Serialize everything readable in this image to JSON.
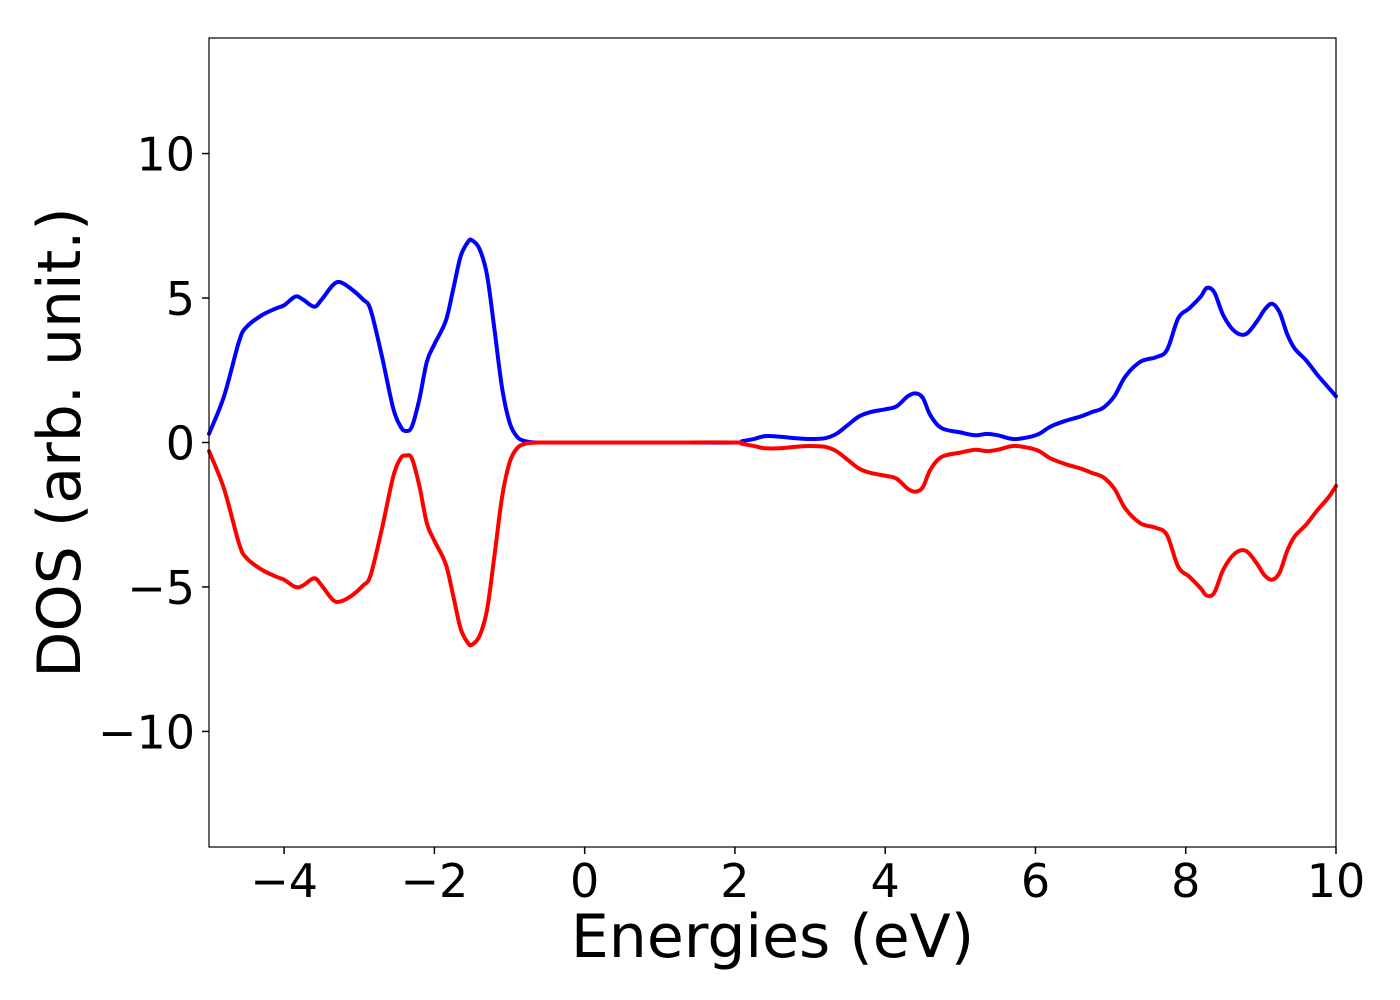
{
  "chart_data": {
    "type": "line",
    "title": "",
    "xlabel": "Energies (eV)",
    "ylabel": "DOS (arb. unit.)",
    "xlim": [
      -5,
      10
    ],
    "ylim": [
      -14,
      14
    ],
    "xticks": [
      -4,
      -2,
      0,
      2,
      4,
      6,
      8,
      10
    ],
    "yticks": [
      -10,
      -5,
      0,
      5,
      10
    ],
    "xtick_labels": [
      "−4",
      "−2",
      "0",
      "2",
      "4",
      "6",
      "8",
      "10"
    ],
    "ytick_labels": [
      "−10",
      "−5",
      "0",
      "5",
      "10"
    ],
    "grid": false,
    "legend": false,
    "series": [
      {
        "color": "#0000ff",
        "x": [
          -5.0,
          -4.8,
          -4.6,
          -4.5,
          -4.3,
          -4.1,
          -4.0,
          -3.85,
          -3.75,
          -3.6,
          -3.5,
          -3.35,
          -3.25,
          -3.1,
          -2.95,
          -2.85,
          -2.7,
          -2.55,
          -2.45,
          -2.38,
          -2.3,
          -2.2,
          -2.1,
          -2.0,
          -1.85,
          -1.75,
          -1.65,
          -1.55,
          -1.5,
          -1.4,
          -1.3,
          -1.2,
          -1.1,
          -1.0,
          -0.9,
          -0.8,
          -0.7,
          -0.6,
          -0.4,
          0.0,
          1.0,
          2.0,
          2.1,
          2.25,
          2.4,
          2.6,
          2.8,
          3.0,
          3.2,
          3.35,
          3.5,
          3.65,
          3.8,
          4.0,
          4.15,
          4.3,
          4.4,
          4.5,
          4.6,
          4.75,
          5.0,
          5.2,
          5.35,
          5.5,
          5.7,
          5.9,
          6.05,
          6.2,
          6.4,
          6.6,
          6.75,
          6.9,
          7.05,
          7.2,
          7.4,
          7.6,
          7.75,
          7.9,
          8.05,
          8.2,
          8.28,
          8.38,
          8.5,
          8.65,
          8.8,
          8.95,
          9.05,
          9.15,
          9.25,
          9.35,
          9.45,
          9.6,
          9.75,
          9.9,
          10.0
        ],
        "y": [
          0.3,
          1.6,
          3.5,
          4.0,
          4.4,
          4.65,
          4.75,
          5.05,
          4.95,
          4.7,
          4.95,
          5.45,
          5.55,
          5.3,
          4.95,
          4.6,
          3.0,
          1.2,
          0.55,
          0.4,
          0.55,
          1.5,
          2.8,
          3.4,
          4.2,
          5.3,
          6.45,
          6.95,
          7.0,
          6.7,
          5.8,
          3.9,
          1.9,
          0.7,
          0.2,
          0.05,
          0.01,
          0.0,
          0.0,
          0.0,
          0.0,
          0.0,
          0.05,
          0.12,
          0.22,
          0.2,
          0.15,
          0.12,
          0.15,
          0.3,
          0.6,
          0.9,
          1.05,
          1.15,
          1.25,
          1.6,
          1.7,
          1.55,
          0.95,
          0.5,
          0.35,
          0.25,
          0.3,
          0.25,
          0.12,
          0.18,
          0.3,
          0.55,
          0.75,
          0.9,
          1.05,
          1.2,
          1.6,
          2.3,
          2.8,
          2.95,
          3.2,
          4.3,
          4.65,
          5.05,
          5.35,
          5.2,
          4.4,
          3.85,
          3.75,
          4.2,
          4.6,
          4.8,
          4.5,
          3.75,
          3.25,
          2.85,
          2.35,
          1.9,
          1.6
        ]
      },
      {
        "color": "#ff0000",
        "x": [
          -5.0,
          -4.8,
          -4.6,
          -4.5,
          -4.3,
          -4.1,
          -4.0,
          -3.85,
          -3.75,
          -3.6,
          -3.5,
          -3.35,
          -3.25,
          -3.1,
          -2.95,
          -2.85,
          -2.7,
          -2.55,
          -2.45,
          -2.38,
          -2.3,
          -2.2,
          -2.1,
          -2.0,
          -1.85,
          -1.75,
          -1.65,
          -1.55,
          -1.5,
          -1.4,
          -1.3,
          -1.2,
          -1.1,
          -1.0,
          -0.9,
          -0.8,
          -0.7,
          -0.6,
          -0.4,
          0.0,
          1.0,
          2.0,
          2.1,
          2.25,
          2.4,
          2.6,
          2.8,
          3.0,
          3.2,
          3.35,
          3.5,
          3.65,
          3.8,
          4.0,
          4.15,
          4.3,
          4.4,
          4.5,
          4.6,
          4.75,
          5.0,
          5.2,
          5.35,
          5.5,
          5.7,
          5.9,
          6.05,
          6.2,
          6.4,
          6.6,
          6.75,
          6.9,
          7.05,
          7.2,
          7.4,
          7.6,
          7.75,
          7.9,
          8.05,
          8.2,
          8.28,
          8.38,
          8.5,
          8.65,
          8.8,
          8.95,
          9.05,
          9.15,
          9.25,
          9.35,
          9.45,
          9.6,
          9.75,
          9.9,
          10.0
        ],
        "y": [
          -0.3,
          -1.6,
          -3.5,
          -4.0,
          -4.4,
          -4.65,
          -4.75,
          -5.0,
          -4.95,
          -4.7,
          -4.95,
          -5.45,
          -5.5,
          -5.3,
          -4.95,
          -4.6,
          -3.0,
          -1.2,
          -0.55,
          -0.45,
          -0.55,
          -1.5,
          -2.8,
          -3.4,
          -4.2,
          -5.3,
          -6.45,
          -6.95,
          -7.0,
          -6.7,
          -5.8,
          -3.9,
          -1.9,
          -0.7,
          -0.2,
          -0.05,
          -0.01,
          0.0,
          0.0,
          0.0,
          0.0,
          0.0,
          -0.05,
          -0.12,
          -0.2,
          -0.2,
          -0.15,
          -0.12,
          -0.15,
          -0.3,
          -0.6,
          -0.9,
          -1.05,
          -1.15,
          -1.25,
          -1.6,
          -1.7,
          -1.55,
          -0.95,
          -0.5,
          -0.35,
          -0.25,
          -0.3,
          -0.25,
          -0.12,
          -0.18,
          -0.3,
          -0.55,
          -0.75,
          -0.9,
          -1.05,
          -1.2,
          -1.6,
          -2.3,
          -2.8,
          -2.95,
          -3.2,
          -4.3,
          -4.65,
          -5.05,
          -5.3,
          -5.2,
          -4.4,
          -3.85,
          -3.75,
          -4.2,
          -4.6,
          -4.75,
          -4.5,
          -3.75,
          -3.25,
          -2.85,
          -2.35,
          -1.9,
          -1.5
        ]
      }
    ]
  }
}
